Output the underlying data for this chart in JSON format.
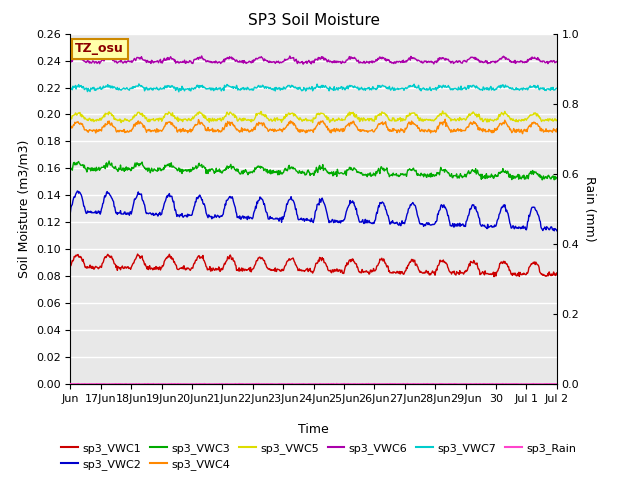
{
  "title": "SP3 Soil Moisture",
  "xlabel": "Time",
  "ylabel_left": "Soil Moisture (m3/m3)",
  "ylabel_right": "Rain (mm)",
  "annotation": "TZ_osu",
  "ylim_left": [
    0.0,
    0.26
  ],
  "ylim_right": [
    0.0,
    1.0
  ],
  "yticks_left": [
    0.0,
    0.02,
    0.04,
    0.06,
    0.08,
    0.1,
    0.12,
    0.14,
    0.16,
    0.18,
    0.2,
    0.22,
    0.24,
    0.26
  ],
  "yticks_right_vals": [
    0.0,
    0.2,
    0.4,
    0.6,
    0.8,
    1.0
  ],
  "yticks_right_labels": [
    "0.0",
    "0.2",
    "0.4",
    "0.6",
    "0.8",
    "1.0"
  ],
  "plot_bg_color": "#e8e8e8",
  "fig_bg_color": "#ffffff",
  "grid_color": "white",
  "tick_labels": [
    "Jun",
    "17Jun",
    "18Jun",
    "19Jun",
    "20Jun",
    "21Jun",
    "22Jun",
    "23Jun",
    "24Jun",
    "25Jun",
    "26Jun",
    "27Jun",
    "28Jun",
    "29Jun",
    "30",
    "Jul 1",
    "Jul 2"
  ],
  "colors": {
    "sp3_VWC1": "#cc0000",
    "sp3_VWC2": "#0000cc",
    "sp3_VWC3": "#00aa00",
    "sp3_VWC4": "#ff8800",
    "sp3_VWC5": "#dddd00",
    "sp3_VWC6": "#aa00aa",
    "sp3_VWC7": "#00cccc",
    "sp3_Rain": "#ff44cc"
  },
  "legend_row1": [
    "sp3_VWC1",
    "sp3_VWC2",
    "sp3_VWC3",
    "sp3_VWC4",
    "sp3_VWC5",
    "sp3_VWC6"
  ],
  "legend_row2": [
    "sp3_VWC7",
    "sp3_Rain"
  ]
}
